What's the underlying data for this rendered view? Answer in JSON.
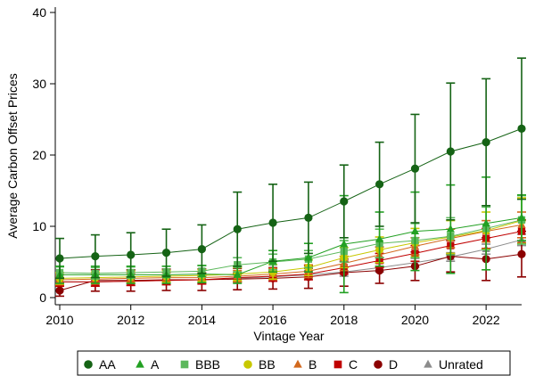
{
  "chart_data": {
    "type": "line",
    "title": "",
    "xlabel": "Vintage Year",
    "ylabel": "Average Carbon Offset Prices",
    "xlim": [
      2010,
      2023
    ],
    "ylim": [
      0,
      40
    ],
    "xticks": [
      2010,
      2012,
      2014,
      2016,
      2018,
      2020,
      2022
    ],
    "yticks": [
      0,
      10,
      20,
      30,
      40
    ],
    "x": [
      2010,
      2011,
      2012,
      2013,
      2014,
      2015,
      2016,
      2017,
      2018,
      2019,
      2020,
      2021,
      2022,
      2023
    ],
    "grid": false,
    "legend_position": "bottom",
    "series": [
      {
        "name": "Unrated",
        "color": "#8c8c8c",
        "marker": "triangle",
        "values": [
          2.2,
          2.2,
          2.3,
          2.4,
          2.5,
          2.7,
          2.9,
          3.2,
          3.6,
          4.2,
          4.9,
          5.7,
          6.8,
          8.1
        ],
        "err": [
          0.5,
          0.5,
          0.5,
          0.5,
          0.5,
          0.5,
          0.6,
          0.6,
          0.6,
          0.6,
          0.6,
          0.6,
          0.7,
          0.8
        ]
      },
      {
        "name": "D",
        "color": "#8b0000",
        "marker": "circle",
        "values": [
          1.0,
          2.4,
          2.4,
          2.5,
          2.5,
          2.6,
          2.7,
          2.9,
          3.5,
          3.8,
          4.4,
          5.8,
          5.4,
          6.1
        ],
        "err": [
          0.8,
          1.5,
          1.5,
          1.5,
          1.5,
          1.5,
          1.5,
          1.6,
          1.9,
          1.8,
          2.0,
          2.2,
          3.0,
          3.2
        ]
      },
      {
        "name": "C",
        "color": "#c00000",
        "marker": "square",
        "values": [
          2.2,
          2.2,
          2.3,
          2.4,
          2.5,
          2.8,
          3.0,
          3.3,
          4.2,
          5.2,
          6.2,
          7.3,
          8.3,
          9.3
        ],
        "err": [
          0.6,
          0.6,
          0.6,
          0.6,
          0.6,
          0.6,
          0.7,
          0.8,
          0.9,
          1.0,
          1.1,
          1.2,
          1.4,
          1.6
        ]
      },
      {
        "name": "B",
        "color": "#d2691e",
        "marker": "triangle",
        "values": [
          2.5,
          2.6,
          2.7,
          2.8,
          2.8,
          3.0,
          3.3,
          3.7,
          4.8,
          6.0,
          7.2,
          8.3,
          9.3,
          10.2
        ],
        "err": [
          0.7,
          0.7,
          0.7,
          0.7,
          0.7,
          0.8,
          0.8,
          0.9,
          1.0,
          1.1,
          1.2,
          1.3,
          1.5,
          1.8
        ]
      },
      {
        "name": "BB",
        "color": "#c8c800",
        "marker": "circle",
        "values": [
          2.7,
          2.8,
          2.9,
          3.0,
          3.1,
          3.3,
          3.6,
          4.2,
          5.6,
          6.7,
          7.7,
          8.5,
          9.4,
          10.8
        ],
        "err": [
          0.8,
          0.8,
          0.8,
          0.8,
          0.8,
          0.9,
          1.0,
          1.1,
          1.4,
          1.8,
          2.0,
          2.3,
          2.6,
          3.2
        ]
      },
      {
        "name": "BBB",
        "color": "#5cb85c",
        "marker": "square",
        "values": [
          3.5,
          3.4,
          3.5,
          3.6,
          3.7,
          4.6,
          5.0,
          5.4,
          6.5,
          7.6,
          8.0,
          8.6,
          9.7,
          10.9
        ],
        "err": [
          0.8,
          0.8,
          0.8,
          0.8,
          0.8,
          1.0,
          1.1,
          1.2,
          1.5,
          2.0,
          2.4,
          2.6,
          3.0,
          3.4
        ]
      },
      {
        "name": "A",
        "color": "#22a022",
        "marker": "triangle",
        "values": [
          3.2,
          3.2,
          3.2,
          3.2,
          3.3,
          3.2,
          5.1,
          5.6,
          7.5,
          8.2,
          9.3,
          9.6,
          10.4,
          11.2
        ],
        "err": [
          1.2,
          1.2,
          1.2,
          1.2,
          1.2,
          1.2,
          1.5,
          2.0,
          6.8,
          3.8,
          5.5,
          6.2,
          6.5,
          3.2
        ]
      },
      {
        "name": "AA",
        "color": "#156315",
        "marker": "circle",
        "values": [
          5.5,
          5.8,
          6.0,
          6.3,
          6.8,
          9.6,
          10.5,
          11.2,
          13.5,
          15.9,
          18.1,
          20.5,
          21.8,
          23.7
        ],
        "err": [
          2.8,
          3.0,
          3.1,
          3.3,
          3.4,
          5.2,
          5.4,
          5.0,
          5.1,
          5.9,
          7.6,
          9.6,
          8.9,
          9.9
        ]
      }
    ],
    "legend": [
      "AA",
      "A",
      "BBB",
      "BB",
      "B",
      "C",
      "D",
      "Unrated"
    ]
  }
}
